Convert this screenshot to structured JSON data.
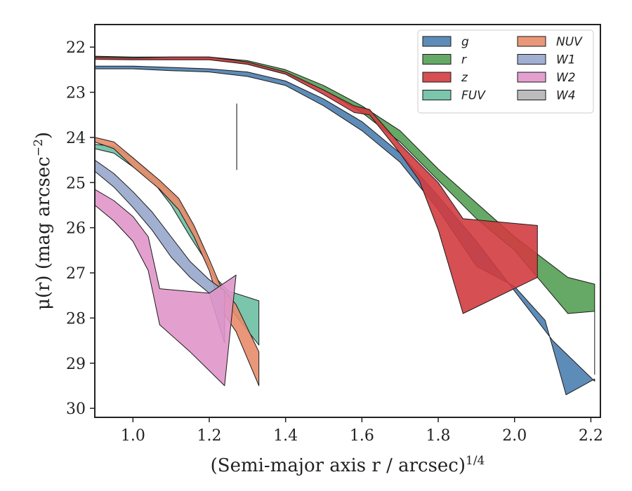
{
  "chart_data": {
    "type": "area",
    "xlabel": "(Semi-major axis r / arcsec)",
    "xlabel_exponent": "1/4",
    "ylabel": "μ(r) (mag arcsec",
    "ylabel_exponent": "−2",
    "ylabel_close": ")",
    "xlim": [
      0.9,
      2.225
    ],
    "ylim": [
      30.2,
      21.5
    ],
    "y_inverted": true,
    "xticks": [
      1.0,
      1.2,
      1.4,
      1.6,
      1.8,
      2.0,
      2.2
    ],
    "xtick_labels": [
      "1.0",
      "1.2",
      "1.4",
      "1.6",
      "1.8",
      "2.0",
      "2.2"
    ],
    "yticks": [
      22,
      23,
      24,
      25,
      26,
      27,
      28,
      29,
      30
    ],
    "ytick_labels": [
      "22",
      "23",
      "24",
      "25",
      "26",
      "27",
      "28",
      "29",
      "30"
    ],
    "grid": false,
    "legend_position": "top-right",
    "legend_columns": 2,
    "marker_line": {
      "x": 1.272,
      "y_top": 23.25,
      "y_bottom": 24.72
    },
    "series": [
      {
        "name": "g",
        "color": "#4C7FB0",
        "upper": [
          [
            0.9,
            22.42
          ],
          [
            1.0,
            22.42
          ],
          [
            1.1,
            22.45
          ],
          [
            1.2,
            22.48
          ],
          [
            1.3,
            22.55
          ],
          [
            1.4,
            22.75
          ],
          [
            1.5,
            23.15
          ],
          [
            1.6,
            23.65
          ],
          [
            1.7,
            24.35
          ],
          [
            1.8,
            25.3
          ],
          [
            1.9,
            26.3
          ],
          [
            2.0,
            27.4
          ],
          [
            2.1,
            28.5
          ],
          [
            2.21,
            29.4
          ]
        ],
        "lower": [
          [
            0.9,
            22.48
          ],
          [
            1.0,
            22.48
          ],
          [
            1.1,
            22.52
          ],
          [
            1.2,
            22.55
          ],
          [
            1.3,
            22.65
          ],
          [
            1.4,
            22.85
          ],
          [
            1.5,
            23.3
          ],
          [
            1.6,
            23.85
          ],
          [
            1.7,
            24.55
          ],
          [
            1.8,
            25.6
          ],
          [
            1.9,
            26.85
          ],
          [
            2.0,
            27.3
          ],
          [
            2.08,
            28.05
          ],
          [
            2.135,
            29.7
          ],
          [
            2.21,
            29.35
          ]
        ]
      },
      {
        "name": "r",
        "color": "#55A055",
        "upper": [
          [
            0.9,
            22.2
          ],
          [
            1.0,
            22.22
          ],
          [
            1.1,
            22.22
          ],
          [
            1.2,
            22.22
          ],
          [
            1.3,
            22.3
          ],
          [
            1.4,
            22.5
          ],
          [
            1.5,
            22.85
          ],
          [
            1.6,
            23.3
          ],
          [
            1.7,
            23.85
          ],
          [
            1.8,
            24.7
          ],
          [
            1.9,
            25.45
          ],
          [
            2.0,
            26.2
          ],
          [
            2.14,
            27.1
          ],
          [
            2.21,
            27.25
          ]
        ],
        "lower": [
          [
            0.9,
            22.25
          ],
          [
            1.0,
            22.27
          ],
          [
            1.1,
            22.27
          ],
          [
            1.2,
            22.27
          ],
          [
            1.3,
            22.38
          ],
          [
            1.4,
            22.6
          ],
          [
            1.5,
            22.95
          ],
          [
            1.6,
            23.45
          ],
          [
            1.7,
            24.1
          ],
          [
            1.8,
            24.95
          ],
          [
            1.9,
            25.8
          ],
          [
            2.0,
            26.5
          ],
          [
            2.14,
            27.9
          ],
          [
            2.21,
            27.85
          ],
          [
            2.21,
            29.25
          ]
        ]
      },
      {
        "name": "z",
        "color": "#D03C40",
        "upper": [
          [
            0.9,
            22.22
          ],
          [
            1.0,
            22.24
          ],
          [
            1.1,
            22.22
          ],
          [
            1.2,
            22.22
          ],
          [
            1.3,
            22.33
          ],
          [
            1.4,
            22.55
          ],
          [
            1.5,
            22.95
          ],
          [
            1.58,
            23.3
          ],
          [
            1.62,
            23.38
          ],
          [
            1.7,
            24.15
          ],
          [
            1.8,
            25.0
          ],
          [
            1.865,
            25.8
          ],
          [
            2.06,
            25.95
          ],
          [
            2.06,
            27.1
          ]
        ],
        "lower": [
          [
            0.9,
            22.27
          ],
          [
            1.0,
            22.28
          ],
          [
            1.1,
            22.28
          ],
          [
            1.2,
            22.28
          ],
          [
            1.3,
            22.38
          ],
          [
            1.4,
            22.6
          ],
          [
            1.5,
            23.05
          ],
          [
            1.58,
            23.45
          ],
          [
            1.62,
            23.5
          ],
          [
            1.7,
            24.35
          ],
          [
            1.75,
            24.95
          ],
          [
            1.8,
            26.05
          ],
          [
            1.865,
            27.9
          ]
        ]
      },
      {
        "name": "FUV",
        "color": "#6DBFA3",
        "upper": [
          [
            0.9,
            24.15
          ],
          [
            0.95,
            24.2
          ],
          [
            1.0,
            24.45
          ],
          [
            1.07,
            25.0
          ],
          [
            1.12,
            25.4
          ],
          [
            1.17,
            26.15
          ],
          [
            1.21,
            27.05
          ],
          [
            1.25,
            27.4
          ],
          [
            1.33,
            27.62
          ]
        ],
        "lower": [
          [
            0.9,
            24.25
          ],
          [
            0.95,
            24.35
          ],
          [
            1.0,
            24.65
          ],
          [
            1.05,
            24.95
          ],
          [
            1.1,
            25.5
          ],
          [
            1.15,
            26.2
          ],
          [
            1.2,
            26.85
          ],
          [
            1.24,
            27.55
          ],
          [
            1.27,
            27.95
          ],
          [
            1.33,
            28.6
          ]
        ]
      },
      {
        "name": "NUV",
        "color": "#E88C6A",
        "upper": [
          [
            0.9,
            24.0
          ],
          [
            0.95,
            24.1
          ],
          [
            1.0,
            24.45
          ],
          [
            1.07,
            24.95
          ],
          [
            1.12,
            25.35
          ],
          [
            1.16,
            25.95
          ],
          [
            1.2,
            26.7
          ],
          [
            1.23,
            27.3
          ],
          [
            1.27,
            27.7
          ],
          [
            1.33,
            28.75
          ]
        ],
        "lower": [
          [
            0.9,
            24.1
          ],
          [
            0.95,
            24.25
          ],
          [
            1.0,
            24.65
          ],
          [
            1.07,
            25.15
          ],
          [
            1.12,
            25.6
          ],
          [
            1.16,
            26.2
          ],
          [
            1.2,
            26.95
          ],
          [
            1.23,
            27.8
          ],
          [
            1.27,
            28.3
          ],
          [
            1.33,
            29.5
          ]
        ]
      },
      {
        "name": "W1",
        "color": "#97A6CC",
        "upper": [
          [
            0.9,
            24.5
          ],
          [
            0.95,
            24.8
          ],
          [
            1.0,
            25.2
          ],
          [
            1.05,
            25.65
          ],
          [
            1.1,
            26.2
          ],
          [
            1.15,
            26.75
          ],
          [
            1.2,
            27.15
          ],
          [
            1.24,
            27.4
          ]
        ],
        "lower": [
          [
            0.9,
            24.75
          ],
          [
            0.95,
            25.1
          ],
          [
            1.0,
            25.55
          ],
          [
            1.05,
            26.05
          ],
          [
            1.1,
            26.65
          ],
          [
            1.15,
            27.1
          ],
          [
            1.2,
            27.45
          ],
          [
            1.24,
            28.55
          ]
        ]
      },
      {
        "name": "W2",
        "color": "#E096C9",
        "upper": [
          [
            0.9,
            25.15
          ],
          [
            0.95,
            25.4
          ],
          [
            1.0,
            25.75
          ],
          [
            1.04,
            26.2
          ],
          [
            1.07,
            27.35
          ],
          [
            1.2,
            27.45
          ],
          [
            1.27,
            27.05
          ]
        ],
        "lower": [
          [
            0.9,
            25.5
          ],
          [
            0.95,
            25.85
          ],
          [
            1.0,
            26.3
          ],
          [
            1.04,
            26.95
          ],
          [
            1.07,
            28.15
          ],
          [
            1.15,
            28.75
          ],
          [
            1.24,
            29.5
          ]
        ]
      },
      {
        "name": "W4",
        "color": "#B5B5B5",
        "upper": [],
        "lower": []
      }
    ]
  }
}
